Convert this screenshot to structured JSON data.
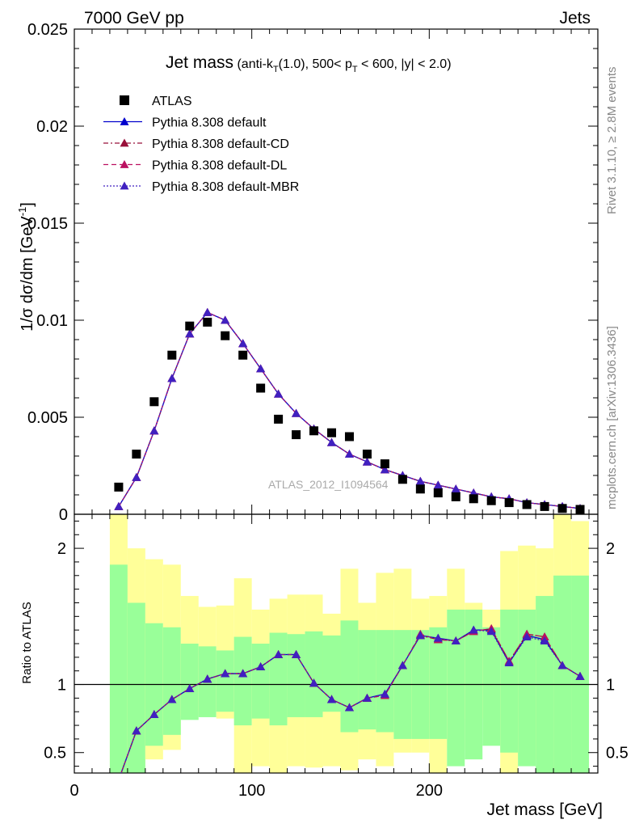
{
  "header": {
    "left": "7000 GeV pp",
    "right": "Jets"
  },
  "side_labels": {
    "rivet": "Rivet 3.1.10, ≥ 2.8M events",
    "mcplots": "mcplots.cern.ch [arXiv:1306.3436]"
  },
  "watermark": "ATLAS_2012_I1094564",
  "title": {
    "main": "Jet mass",
    "detail_prefix": " (anti-k",
    "detail_sub1": "T",
    "detail_mid": "(1.0), 500< p",
    "detail_sub2": "T",
    "detail_suffix": " < 600, |y| < 2.0)"
  },
  "colors": {
    "data": "#000000",
    "default": "#0000cc",
    "cd": "#99103a",
    "dl": "#bb1060",
    "mbr": "#4020c0",
    "band_inner": "#99ff99",
    "band_outer": "#ffff99"
  },
  "chart_data": [
    {
      "type": "scatter",
      "panel": "main",
      "ylabel_main": "1/σ dσ/dm [GeV",
      "ylabel_sup": "-1",
      "ylabel_close": "]",
      "xlim": [
        0,
        295
      ],
      "ylim": [
        0,
        0.025
      ],
      "yticks": [
        0,
        0.005,
        0.01,
        0.015,
        0.02,
        0.025
      ],
      "ytick_labels": [
        "0",
        "0.005",
        "0.01",
        "0.015",
        "0.02",
        "0.025"
      ],
      "legend_position": "top-left",
      "legend": [
        {
          "label": "ATLAS",
          "style": "data"
        },
        {
          "label": "Pythia 8.308 default",
          "style": "default"
        },
        {
          "label": "Pythia 8.308 default-CD",
          "style": "cd"
        },
        {
          "label": "Pythia 8.308 default-DL",
          "style": "dl"
        },
        {
          "label": "Pythia 8.308 default-MBR",
          "style": "mbr"
        }
      ],
      "x": [
        25,
        35,
        45,
        55,
        65,
        75,
        85,
        95,
        105,
        115,
        125,
        135,
        145,
        155,
        165,
        175,
        185,
        195,
        205,
        215,
        225,
        235,
        245,
        255,
        265,
        275,
        285
      ],
      "data_values": [
        0.0014,
        0.0031,
        0.0058,
        0.0082,
        0.0097,
        0.0099,
        0.0092,
        0.0082,
        0.0065,
        0.0049,
        0.0041,
        0.0043,
        0.0042,
        0.004,
        0.0031,
        0.0026,
        0.0018,
        0.0013,
        0.0011,
        0.0009,
        0.0008,
        0.0007,
        0.0006,
        0.0005,
        0.0004,
        0.0003,
        0.00025
      ],
      "series": [
        {
          "name": "Pythia 8.308 default",
          "style": "default",
          "values": [
            0.0004,
            0.0019,
            0.0043,
            0.007,
            0.0093,
            0.0104,
            0.01,
            0.0088,
            0.0075,
            0.0062,
            0.0052,
            0.0044,
            0.0037,
            0.0031,
            0.0027,
            0.0023,
            0.002,
            0.0017,
            0.0015,
            0.0013,
            0.0011,
            0.0009,
            0.0008,
            0.0006,
            0.0005,
            0.0004,
            0.0003
          ]
        },
        {
          "name": "Pythia 8.308 default-CD",
          "style": "cd",
          "values": [
            0.0004,
            0.0019,
            0.0043,
            0.007,
            0.0093,
            0.0104,
            0.01,
            0.0088,
            0.0075,
            0.0062,
            0.0052,
            0.0044,
            0.0037,
            0.0031,
            0.0027,
            0.0023,
            0.002,
            0.0017,
            0.0015,
            0.0013,
            0.0011,
            0.0009,
            0.0008,
            0.0006,
            0.0005,
            0.0004,
            0.0003
          ]
        },
        {
          "name": "Pythia 8.308 default-DL",
          "style": "dl",
          "values": [
            0.0004,
            0.0019,
            0.0043,
            0.007,
            0.0093,
            0.0104,
            0.01,
            0.0088,
            0.0075,
            0.0062,
            0.0052,
            0.0044,
            0.0037,
            0.0031,
            0.0027,
            0.0023,
            0.002,
            0.0017,
            0.0015,
            0.0013,
            0.0011,
            0.0009,
            0.0008,
            0.0006,
            0.0005,
            0.0004,
            0.0003
          ]
        },
        {
          "name": "Pythia 8.308 default-MBR",
          "style": "mbr",
          "values": [
            0.0004,
            0.0019,
            0.0043,
            0.007,
            0.0093,
            0.0104,
            0.01,
            0.0088,
            0.0075,
            0.0062,
            0.0052,
            0.0044,
            0.0037,
            0.0031,
            0.0027,
            0.0023,
            0.002,
            0.0017,
            0.0015,
            0.0013,
            0.0011,
            0.0009,
            0.0008,
            0.0006,
            0.0005,
            0.0004,
            0.0003
          ]
        }
      ]
    },
    {
      "type": "line",
      "panel": "ratio",
      "ylabel": "Ratio to ATLAS",
      "xlabel": "Jet mass [GeV]",
      "xlim": [
        0,
        295
      ],
      "ylim": [
        0.35,
        2.25
      ],
      "xticks": [
        0,
        100,
        200
      ],
      "xtick_labels": [
        "0",
        "100",
        "200"
      ],
      "yticks": [
        0.5,
        1,
        2
      ],
      "ytick_labels": [
        "0.5",
        "1",
        "2"
      ],
      "reference": 1,
      "bins": [
        [
          20,
          30
        ],
        [
          30,
          40
        ],
        [
          40,
          50
        ],
        [
          50,
          60
        ],
        [
          60,
          70
        ],
        [
          70,
          80
        ],
        [
          80,
          90
        ],
        [
          90,
          100
        ],
        [
          100,
          110
        ],
        [
          110,
          120
        ],
        [
          120,
          130
        ],
        [
          130,
          140
        ],
        [
          140,
          150
        ],
        [
          150,
          160
        ],
        [
          160,
          170
        ],
        [
          170,
          180
        ],
        [
          180,
          190
        ],
        [
          190,
          200
        ],
        [
          200,
          210
        ],
        [
          210,
          220
        ],
        [
          220,
          230
        ],
        [
          230,
          240
        ],
        [
          240,
          250
        ],
        [
          250,
          260
        ],
        [
          260,
          270
        ],
        [
          270,
          280
        ],
        [
          280,
          290
        ]
      ],
      "band_inner": [
        [
          0.2,
          1.88
        ],
        [
          0.3,
          1.6
        ],
        [
          0.55,
          1.45
        ],
        [
          0.63,
          1.42
        ],
        [
          0.74,
          1.3
        ],
        [
          0.76,
          1.28
        ],
        [
          0.8,
          1.25
        ],
        [
          0.7,
          1.35
        ],
        [
          0.75,
          1.3
        ],
        [
          0.7,
          1.38
        ],
        [
          0.76,
          1.37
        ],
        [
          0.76,
          1.39
        ],
        [
          0.8,
          1.36
        ],
        [
          0.65,
          1.47
        ],
        [
          0.67,
          1.4
        ],
        [
          0.65,
          1.4
        ],
        [
          0.6,
          1.4
        ],
        [
          0.6,
          1.4
        ],
        [
          0.6,
          1.42
        ],
        [
          0.4,
          1.55
        ],
        [
          0.45,
          1.55
        ],
        [
          0.55,
          1.42
        ],
        [
          0.5,
          1.55
        ],
        [
          0.4,
          1.55
        ],
        [
          0.35,
          1.65
        ],
        [
          0.35,
          1.8
        ],
        [
          0.35,
          1.8
        ]
      ],
      "band_outer": [
        [
          0.2,
          2.35
        ],
        [
          0.2,
          2.0
        ],
        [
          0.45,
          1.92
        ],
        [
          0.52,
          1.88
        ],
        [
          0.77,
          1.65
        ],
        [
          0.81,
          1.57
        ],
        [
          0.75,
          1.58
        ],
        [
          0.35,
          1.78
        ],
        [
          0.4,
          1.55
        ],
        [
          0.35,
          1.63
        ],
        [
          0.4,
          1.66
        ],
        [
          0.39,
          1.66
        ],
        [
          0.4,
          1.52
        ],
        [
          0.37,
          1.85
        ],
        [
          0.45,
          1.6
        ],
        [
          0.4,
          1.82
        ],
        [
          0.5,
          1.85
        ],
        [
          0.5,
          1.63
        ],
        [
          0.35,
          1.65
        ],
        [
          0.52,
          1.85
        ],
        [
          0.75,
          1.6
        ],
        [
          0.75,
          1.55
        ],
        [
          0.35,
          1.98
        ],
        [
          0.45,
          2.02
        ],
        [
          0.45,
          2.0
        ],
        [
          0.35,
          2.35
        ],
        [
          0.35,
          2.2
        ]
      ],
      "series": [
        {
          "name": "Pythia 8.308 default",
          "style": "default",
          "values": [
            0.3,
            0.66,
            0.78,
            0.89,
            0.97,
            1.04,
            1.08,
            1.08,
            1.13,
            1.22,
            1.22,
            1.01,
            0.89,
            0.83,
            0.9,
            0.93,
            1.14,
            1.36,
            1.34,
            1.32,
            1.4,
            1.4,
            1.16,
            1.36,
            1.33,
            1.14,
            1.06
          ]
        },
        {
          "name": "Pythia 8.308 default-CD",
          "style": "cd",
          "values": [
            0.3,
            0.66,
            0.78,
            0.89,
            0.97,
            1.04,
            1.08,
            1.08,
            1.13,
            1.22,
            1.22,
            1.01,
            0.89,
            0.83,
            0.9,
            0.92,
            1.14,
            1.36,
            1.33,
            1.32,
            1.39,
            1.41,
            1.17,
            1.37,
            1.35,
            1.14,
            1.06
          ]
        },
        {
          "name": "Pythia 8.308 default-DL",
          "style": "dl",
          "values": [
            0.3,
            0.66,
            0.78,
            0.89,
            0.97,
            1.04,
            1.08,
            1.08,
            1.13,
            1.22,
            1.22,
            1.01,
            0.89,
            0.83,
            0.9,
            0.92,
            1.14,
            1.37,
            1.33,
            1.32,
            1.39,
            1.41,
            1.17,
            1.37,
            1.35,
            1.14,
            1.06
          ]
        },
        {
          "name": "Pythia 8.308 default-MBR",
          "style": "mbr",
          "values": [
            0.3,
            0.66,
            0.78,
            0.89,
            0.97,
            1.04,
            1.08,
            1.08,
            1.13,
            1.22,
            1.22,
            1.01,
            0.89,
            0.83,
            0.9,
            0.93,
            1.14,
            1.36,
            1.34,
            1.32,
            1.4,
            1.39,
            1.16,
            1.35,
            1.32,
            1.14,
            1.06
          ]
        }
      ]
    }
  ]
}
